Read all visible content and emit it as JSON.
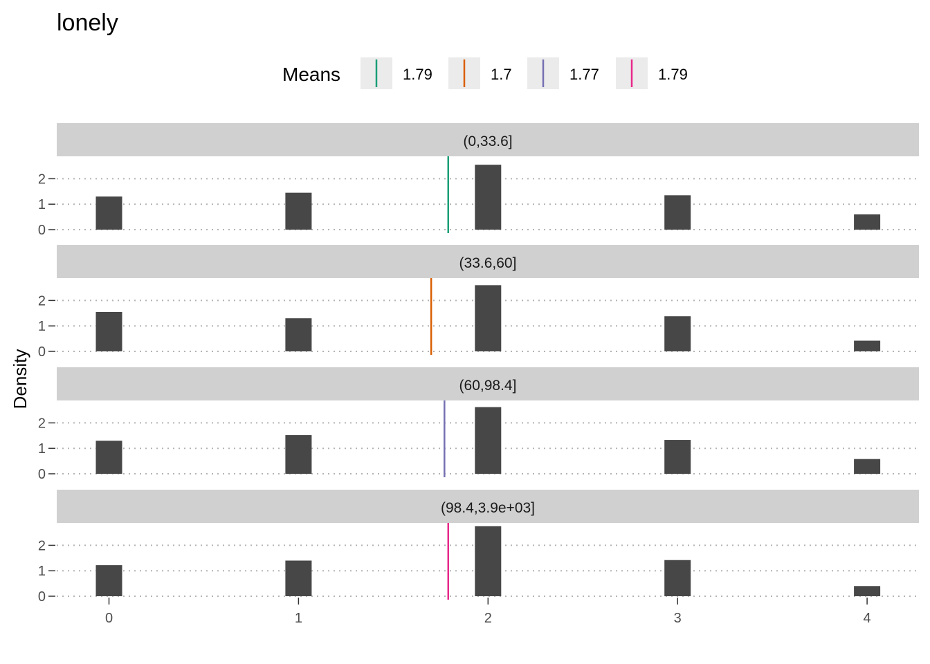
{
  "chart_data": {
    "type": "bar",
    "title": "lonely",
    "ylabel": "Density",
    "xlabel": "",
    "x_ticks": [
      0,
      1,
      2,
      3,
      4
    ],
    "y_ticks": [
      0,
      1,
      2
    ],
    "xlim": [
      -0.27,
      4.27
    ],
    "ylim": [
      0,
      2.6
    ],
    "grid": "dotted horizontal",
    "bar_color": "#474747",
    "legend": {
      "title": "Means",
      "position": "top",
      "items": [
        {
          "label": "1.79",
          "color": "#1b9e77"
        },
        {
          "label": "1.7",
          "color": "#d95f02"
        },
        {
          "label": "1.77",
          "color": "#7570b3"
        },
        {
          "label": "1.79",
          "color": "#e7298a"
        }
      ]
    },
    "panels": [
      {
        "strip": "(0,33.6]",
        "mean": 1.79,
        "mean_color": "#1b9e77",
        "bars": [
          {
            "x": 0,
            "y": 1.3
          },
          {
            "x": 1,
            "y": 1.45
          },
          {
            "x": 2,
            "y": 2.55
          },
          {
            "x": 3,
            "y": 1.35
          },
          {
            "x": 4,
            "y": 0.6
          }
        ]
      },
      {
        "strip": "(33.6,60]",
        "mean": 1.7,
        "mean_color": "#d95f02",
        "bars": [
          {
            "x": 0,
            "y": 1.55
          },
          {
            "x": 1,
            "y": 1.3
          },
          {
            "x": 2,
            "y": 2.6
          },
          {
            "x": 3,
            "y": 1.38
          },
          {
            "x": 4,
            "y": 0.42
          }
        ]
      },
      {
        "strip": "(60,98.4]",
        "mean": 1.77,
        "mean_color": "#7570b3",
        "bars": [
          {
            "x": 0,
            "y": 1.3
          },
          {
            "x": 1,
            "y": 1.52
          },
          {
            "x": 2,
            "y": 2.62
          },
          {
            "x": 3,
            "y": 1.33
          },
          {
            "x": 4,
            "y": 0.58
          }
        ]
      },
      {
        "strip": "(98.4,3.9e+03]",
        "mean": 1.79,
        "mean_color": "#e7298a",
        "bars": [
          {
            "x": 0,
            "y": 1.22
          },
          {
            "x": 1,
            "y": 1.4
          },
          {
            "x": 2,
            "y": 2.75
          },
          {
            "x": 3,
            "y": 1.42
          },
          {
            "x": 4,
            "y": 0.4
          }
        ]
      }
    ]
  }
}
